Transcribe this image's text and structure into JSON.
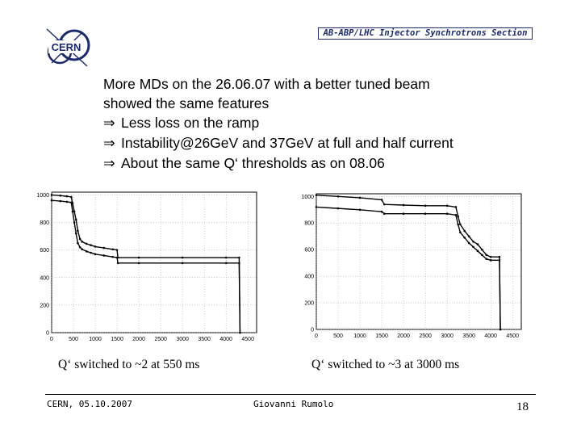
{
  "header": {
    "logo_text": "CERN",
    "section_title": "AB-ABP/LHC Injector Synchrotrons Section"
  },
  "body": {
    "lines": [
      "More MDs on the 26.06.07 with a better tuned beam",
      "showed the same features"
    ],
    "arrow_symbol": "⇒",
    "bullets": [
      "Less loss on the ramp",
      "Instability@26GeV and 37GeV at full and half current",
      "About the same Q‘ thresholds as on 08.06"
    ]
  },
  "chart_data": [
    {
      "type": "scatter",
      "x_ticks": [
        "0",
        "500",
        "1000",
        "1500",
        "2000",
        "2500",
        "3000",
        "3500",
        "4000",
        "4500"
      ],
      "y_ticks": [
        "0",
        "200",
        "400",
        "600",
        "800",
        "1000"
      ],
      "xlim": [
        0,
        4700
      ],
      "ylim": [
        0,
        1020
      ],
      "grid": true,
      "series": [
        {
          "x": [
            0,
            200,
            350,
            450,
            480,
            520,
            560,
            600,
            650,
            700,
            800,
            900,
            1000,
            1200,
            1400,
            1500,
            1520,
            2000,
            3000,
            4000,
            4300,
            4320
          ],
          "y": [
            1000,
            995,
            990,
            985,
            940,
            880,
            820,
            740,
            680,
            660,
            645,
            635,
            625,
            615,
            605,
            600,
            545,
            545,
            545,
            545,
            545,
            0
          ]
        },
        {
          "x": [
            0,
            200,
            350,
            450,
            480,
            520,
            560,
            600,
            650,
            700,
            800,
            900,
            1000,
            1200,
            1400,
            1500,
            1520,
            2000,
            3000,
            4000,
            4300,
            4320
          ],
          "y": [
            960,
            955,
            950,
            945,
            880,
            800,
            720,
            650,
            620,
            605,
            590,
            580,
            570,
            560,
            550,
            545,
            505,
            505,
            505,
            505,
            505,
            0
          ]
        }
      ],
      "caption": "Q‘ switched to ~2 at 550 ms"
    },
    {
      "type": "scatter",
      "x_ticks": [
        "0",
        "500",
        "1000",
        "1500",
        "2000",
        "2500",
        "3000",
        "3500",
        "4000",
        "4500"
      ],
      "y_ticks": [
        "0",
        "200",
        "400",
        "600",
        "800",
        "1000"
      ],
      "xlim": [
        0,
        4700
      ],
      "ylim": [
        0,
        1020
      ],
      "grid": true,
      "series": [
        {
          "x": [
            0,
            500,
            1000,
            1500,
            1560,
            2000,
            2500,
            3000,
            3200,
            3250,
            3300,
            3400,
            3500,
            3600,
            3700,
            3800,
            3900,
            4000,
            4200,
            4220
          ],
          "y": [
            1010,
            1000,
            990,
            975,
            940,
            935,
            930,
            930,
            920,
            850,
            790,
            740,
            700,
            660,
            640,
            600,
            560,
            545,
            545,
            0
          ]
        },
        {
          "x": [
            0,
            500,
            1000,
            1500,
            1560,
            2000,
            2500,
            3000,
            3200,
            3250,
            3300,
            3400,
            3500,
            3600,
            3700,
            3800,
            3900,
            4000,
            4200,
            4220
          ],
          "y": [
            920,
            910,
            900,
            885,
            870,
            870,
            870,
            870,
            860,
            790,
            730,
            690,
            650,
            620,
            590,
            560,
            530,
            520,
            520,
            0
          ]
        }
      ],
      "caption": "Q‘ switched to ~3 at 3000 ms"
    }
  ],
  "footer": {
    "left": "CERN, 05.10.2007",
    "center": "Giovanni Rumolo",
    "page": "18"
  }
}
